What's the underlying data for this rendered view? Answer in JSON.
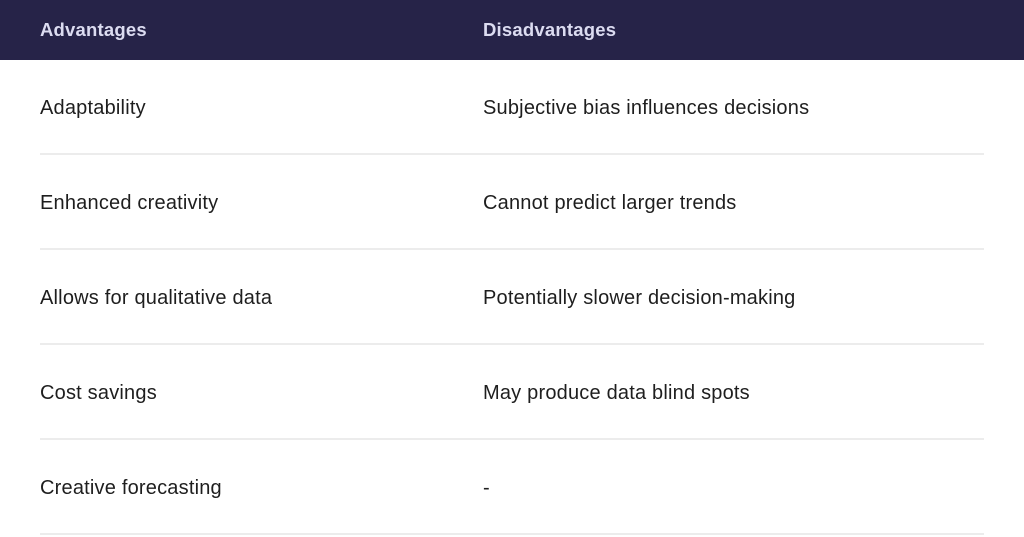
{
  "table": {
    "columns": [
      "Advantages",
      "Disadvantages"
    ],
    "rows": [
      [
        "Adaptability",
        "Subjective bias influences decisions"
      ],
      [
        "Enhanced creativity",
        "Cannot predict larger trends"
      ],
      [
        "Allows for qualitative data",
        "Potentially slower decision-making"
      ],
      [
        "Cost savings",
        "May produce data blind spots"
      ],
      [
        "Creative forecasting",
        "-"
      ]
    ]
  },
  "colors": {
    "header_bg": "#262348",
    "header_text": "#dcdcf1",
    "body_text": "#1e1e1e",
    "divider": "#ececec",
    "page_bg": "#ffffff"
  }
}
